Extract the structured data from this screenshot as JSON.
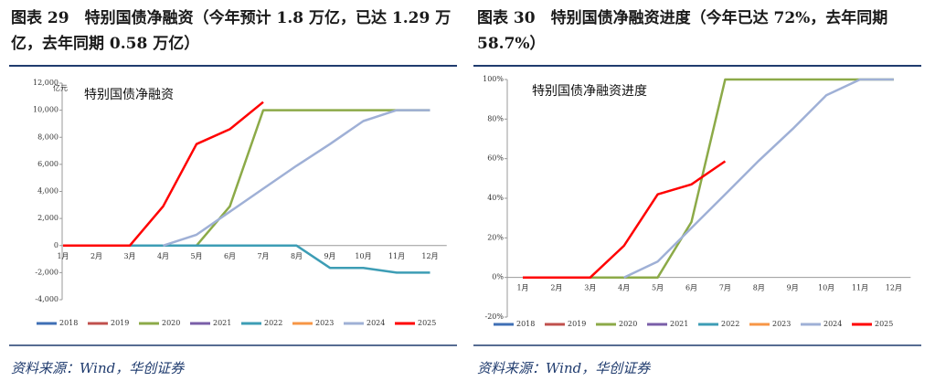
{
  "chart_data": [
    {
      "type": "line",
      "title": "图表 29　特别国债净融资（今年预计 1.8 万亿，已达 1.29 万亿，去年同期 0.58 万亿）",
      "subtitle": "特别国债净融资",
      "ylabel": "亿元",
      "source": "资料来源：Wind，华创证券",
      "categories": [
        "1月",
        "2月",
        "3月",
        "4月",
        "5月",
        "6月",
        "7月",
        "8月",
        "9月",
        "10月",
        "11月",
        "12月"
      ],
      "ylim": [
        -4000,
        12000
      ],
      "yticks": [
        {
          "value": -4000,
          "label": "-4,000"
        },
        {
          "value": -2000,
          "label": "-2,000"
        },
        0,
        {
          "value": 2000,
          "label": "2,000"
        },
        {
          "value": 4000,
          "label": "4,000"
        },
        {
          "value": 6000,
          "label": "6,000"
        },
        {
          "value": 8000,
          "label": "8,000"
        },
        {
          "value": 10000,
          "label": "10,000"
        },
        {
          "value": 12000,
          "label": "12,000"
        }
      ],
      "series": [
        {
          "name": "2018",
          "color": "#3f6fb5",
          "values": [
            null,
            null,
            null,
            null,
            null,
            null,
            null,
            null,
            null,
            null,
            null,
            null
          ]
        },
        {
          "name": "2019",
          "color": "#c0504d",
          "values": [
            null,
            null,
            null,
            null,
            null,
            null,
            null,
            null,
            null,
            null,
            null,
            null
          ]
        },
        {
          "name": "2020",
          "color": "#8caa48",
          "values": [
            0,
            0,
            0,
            0,
            0,
            2900,
            10000,
            10000,
            10000,
            10000,
            10000,
            10000
          ]
        },
        {
          "name": "2021",
          "color": "#7a5ea8",
          "values": [
            null,
            null,
            null,
            null,
            null,
            null,
            null,
            null,
            null,
            null,
            null,
            null
          ]
        },
        {
          "name": "2022",
          "color": "#3d9db5",
          "values": [
            0,
            0,
            0,
            0,
            0,
            0,
            0,
            0,
            -1650,
            -1650,
            -2000,
            -2000
          ]
        },
        {
          "name": "2023",
          "color": "#f79646",
          "values": [
            null,
            null,
            null,
            null,
            null,
            null,
            null,
            null,
            null,
            null,
            null,
            null
          ]
        },
        {
          "name": "2024",
          "color": "#9fb0d6",
          "values": [
            null,
            null,
            null,
            0,
            800,
            2500,
            4200,
            5900,
            7500,
            9200,
            10000,
            10000
          ]
        },
        {
          "name": "2025",
          "color": "#ff0000",
          "values": [
            0,
            0,
            0,
            2900,
            7500,
            8600,
            10600,
            null,
            null,
            null,
            null,
            null
          ]
        }
      ]
    },
    {
      "type": "line",
      "title": "图表 30　特别国债净融资进度（今年已达 72%，去年同期 58.7%）",
      "subtitle": "特别国债净融资进度",
      "source": "资料来源：Wind，华创证券",
      "categories": [
        "1月",
        "2月",
        "3月",
        "4月",
        "5月",
        "6月",
        "7月",
        "8月",
        "9月",
        "10月",
        "11月",
        "12月"
      ],
      "ylim": [
        -20,
        100
      ],
      "yticks": [
        {
          "value": -20,
          "label": "-20%"
        },
        {
          "value": 0,
          "label": "0%"
        },
        {
          "value": 20,
          "label": "20%"
        },
        {
          "value": 40,
          "label": "40%"
        },
        {
          "value": 60,
          "label": "60%"
        },
        {
          "value": 80,
          "label": "80%"
        },
        {
          "value": 100,
          "label": "100%"
        }
      ],
      "series": [
        {
          "name": "2018",
          "color": "#3f6fb5",
          "values": [
            null,
            null,
            null,
            null,
            null,
            null,
            null,
            null,
            null,
            null,
            null,
            null
          ]
        },
        {
          "name": "2019",
          "color": "#c0504d",
          "values": [
            null,
            null,
            null,
            null,
            null,
            null,
            null,
            null,
            null,
            null,
            null,
            null
          ]
        },
        {
          "name": "2020",
          "color": "#8caa48",
          "values": [
            0,
            0,
            0,
            0,
            0,
            28,
            100,
            100,
            100,
            100,
            100,
            100
          ]
        },
        {
          "name": "2021",
          "color": "#7a5ea8",
          "values": [
            null,
            null,
            null,
            null,
            null,
            null,
            null,
            null,
            null,
            null,
            null,
            null
          ]
        },
        {
          "name": "2022",
          "color": "#3d9db5",
          "values": [
            null,
            null,
            null,
            null,
            null,
            null,
            null,
            null,
            null,
            null,
            null,
            null
          ]
        },
        {
          "name": "2023",
          "color": "#f79646",
          "values": [
            null,
            null,
            null,
            null,
            null,
            null,
            null,
            null,
            null,
            null,
            null,
            null
          ]
        },
        {
          "name": "2024",
          "color": "#9fb0d6",
          "values": [
            null,
            null,
            null,
            0,
            8,
            25,
            42,
            59,
            75,
            92,
            100,
            100
          ]
        },
        {
          "name": "2025",
          "color": "#ff0000",
          "values": [
            0,
            0,
            0,
            16,
            42,
            47,
            58.7,
            null,
            null,
            null,
            null,
            null
          ]
        }
      ]
    }
  ]
}
